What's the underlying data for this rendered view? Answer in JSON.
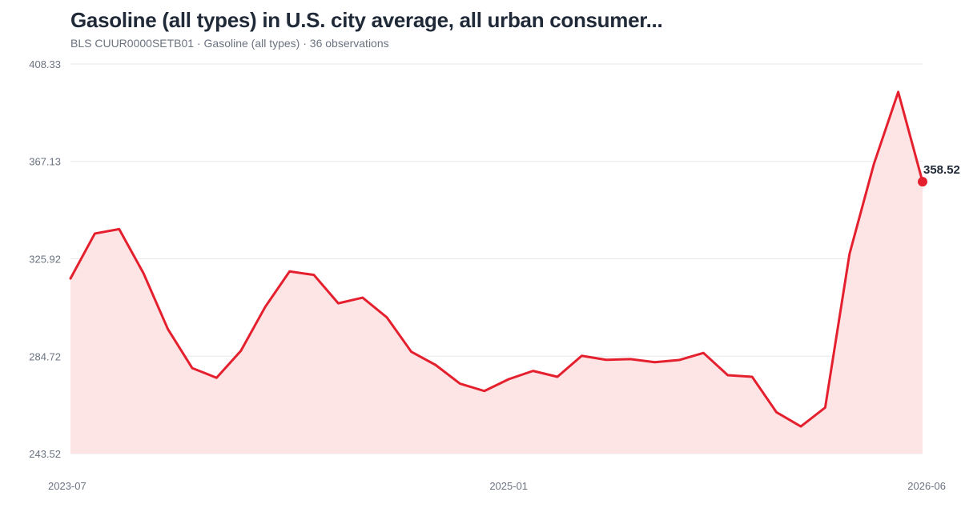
{
  "header": {
    "title": "Gasoline (all types) in U.S. city average, all urban consumer...",
    "subtitle": "BLS CUUR0000SETB01 · Gasoline (all types) · 36 observations"
  },
  "colors": {
    "line": "#e5202e",
    "area": "#fde4e5",
    "grid": "#e5e7eb"
  },
  "chart_data": {
    "type": "area",
    "title": "Gasoline (all types) in U.S. city average, all urban consumer...",
    "x": [
      "2023-07",
      "2023-08",
      "2023-09",
      "2023-10",
      "2023-11",
      "2023-12",
      "2024-01",
      "2024-02",
      "2024-03",
      "2024-04",
      "2024-05",
      "2024-06",
      "2024-07",
      "2024-08",
      "2024-09",
      "2024-10",
      "2024-11",
      "2024-12",
      "2025-01",
      "2025-02",
      "2025-03",
      "2025-04",
      "2025-05",
      "2025-06",
      "2025-07",
      "2025-08",
      "2025-09",
      "2025-10",
      "2025-11",
      "2025-12",
      "2026-01",
      "2026-02",
      "2026-03",
      "2026-04",
      "2026-05",
      "2026-06"
    ],
    "series": [
      {
        "values": [
          317.6,
          336.6,
          338.5,
          319.8,
          296.2,
          279.7,
          275.6,
          287.0,
          305.6,
          320.6,
          319.1,
          307.1,
          309.5,
          301.1,
          286.6,
          281.0,
          273.1,
          270.0,
          275.0,
          278.5,
          276.0,
          284.9,
          283.2,
          283.5,
          282.2,
          283.1,
          286.1,
          276.7,
          276.0,
          261.0,
          255.0,
          263.0,
          328.0,
          366.0,
          396.5,
          358.52
        ]
      }
    ],
    "y_ticks": [
      "408.33",
      "367.13",
      "325.92",
      "284.72",
      "243.52"
    ],
    "x_ticks": [
      "2023-07",
      "2025-01",
      "2026-06"
    ],
    "ylim": [
      243.52,
      408.33
    ],
    "last_value_label": "358.52",
    "grid": true,
    "legend": "none"
  }
}
